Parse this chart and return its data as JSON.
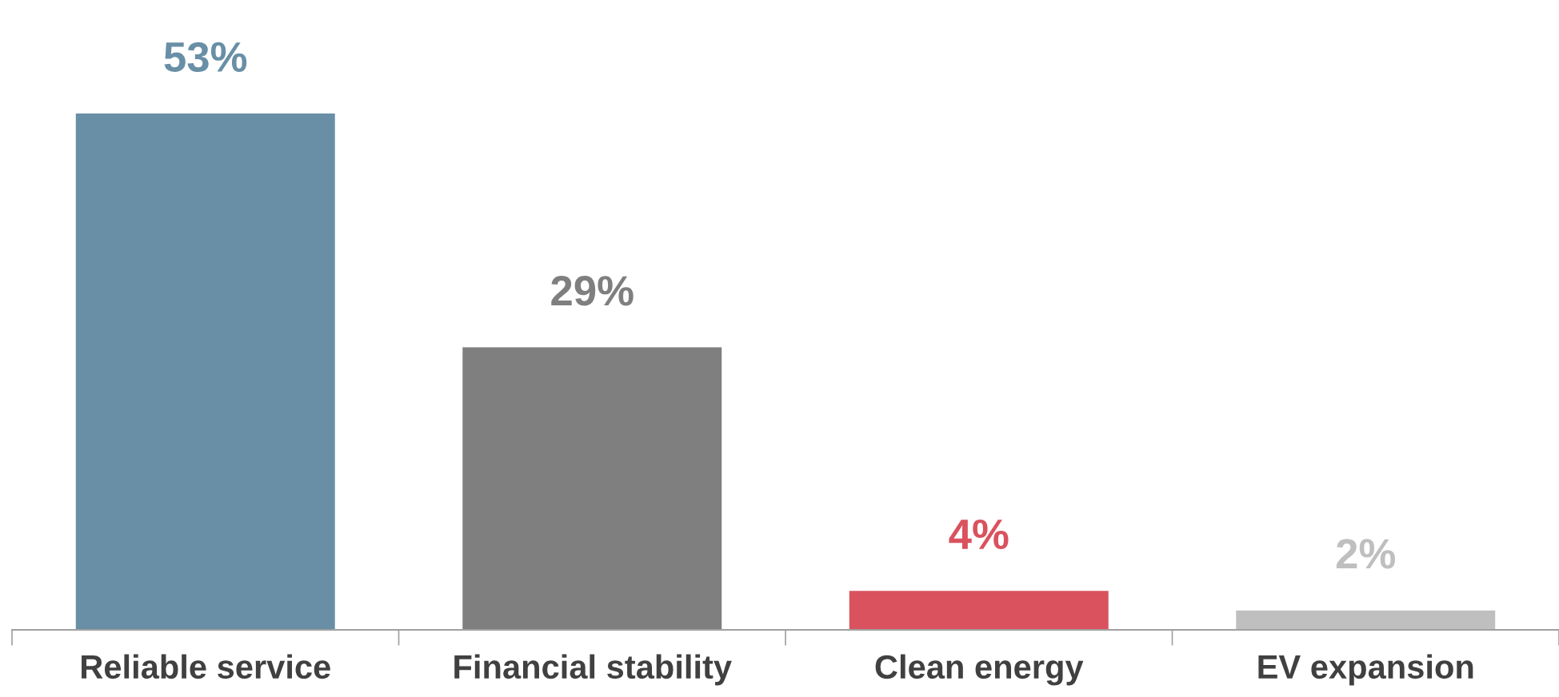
{
  "chart_data": {
    "type": "bar",
    "categories": [
      "Reliable service",
      "Financial stability",
      "Clean energy",
      "EV expansion"
    ],
    "values": [
      53,
      29,
      4,
      2
    ],
    "colors": [
      "#688fa6",
      "#7f7f7f",
      "#d9525e",
      "#bfbfbf"
    ],
    "value_labels": [
      "53%",
      "29%",
      "4%",
      "2%"
    ]
  }
}
